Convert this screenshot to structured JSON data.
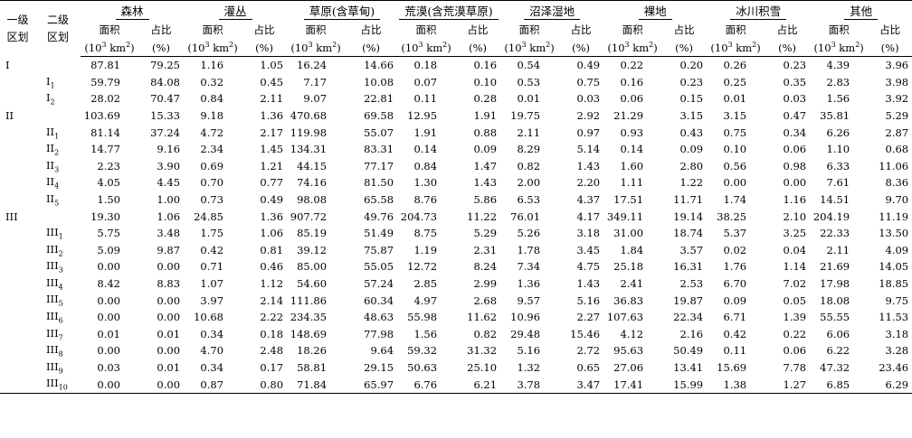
{
  "header": {
    "level1": "一级区划",
    "level2": "二级区划",
    "groups": [
      "森林",
      "灌丛",
      "草原(含草甸)",
      "荒漠(含荒漠草原)",
      "沼泽湿地",
      "裸地",
      "冰川积雪",
      "其他"
    ],
    "area_label": "面积",
    "area_unit_pre": "(10",
    "area_unit_exp": "3",
    "area_unit_post": " km",
    "area_unit_exp2": "2",
    "area_unit_close": ")",
    "ratio_label": "占比",
    "ratio_unit": "(%)"
  },
  "rows": [
    {
      "l1": "I",
      "l2": "",
      "l2sub": "",
      "v": [
        "87.81",
        "79.25",
        "1.16",
        "1.05",
        "16.24",
        "14.66",
        "0.18",
        "0.16",
        "0.54",
        "0.49",
        "0.22",
        "0.20",
        "0.26",
        "0.23",
        "4.39",
        "3.96"
      ]
    },
    {
      "l1": "",
      "l2": "I",
      "l2sub": "1",
      "v": [
        "59.79",
        "84.08",
        "0.32",
        "0.45",
        "7.17",
        "10.08",
        "0.07",
        "0.10",
        "0.53",
        "0.75",
        "0.16",
        "0.23",
        "0.25",
        "0.35",
        "2.83",
        "3.98"
      ]
    },
    {
      "l1": "",
      "l2": "I",
      "l2sub": "2",
      "v": [
        "28.02",
        "70.47",
        "0.84",
        "2.11",
        "9.07",
        "22.81",
        "0.11",
        "0.28",
        "0.01",
        "0.03",
        "0.06",
        "0.15",
        "0.01",
        "0.03",
        "1.56",
        "3.92"
      ]
    },
    {
      "l1": "II",
      "l2": "",
      "l2sub": "",
      "v": [
        "103.69",
        "15.33",
        "9.18",
        "1.36",
        "470.68",
        "69.58",
        "12.95",
        "1.91",
        "19.75",
        "2.92",
        "21.29",
        "3.15",
        "3.15",
        "0.47",
        "35.81",
        "5.29"
      ]
    },
    {
      "l1": "",
      "l2": "II",
      "l2sub": "1",
      "v": [
        "81.14",
        "37.24",
        "4.72",
        "2.17",
        "119.98",
        "55.07",
        "1.91",
        "0.88",
        "2.11",
        "0.97",
        "0.93",
        "0.43",
        "0.75",
        "0.34",
        "6.26",
        "2.87"
      ]
    },
    {
      "l1": "",
      "l2": "II",
      "l2sub": "2",
      "v": [
        "14.77",
        "9.16",
        "2.34",
        "1.45",
        "134.31",
        "83.31",
        "0.14",
        "0.09",
        "8.29",
        "5.14",
        "0.14",
        "0.09",
        "0.10",
        "0.06",
        "1.10",
        "0.68"
      ]
    },
    {
      "l1": "",
      "l2": "II",
      "l2sub": "3",
      "v": [
        "2.23",
        "3.90",
        "0.69",
        "1.21",
        "44.15",
        "77.17",
        "0.84",
        "1.47",
        "0.82",
        "1.43",
        "1.60",
        "2.80",
        "0.56",
        "0.98",
        "6.33",
        "11.06"
      ]
    },
    {
      "l1": "",
      "l2": "II",
      "l2sub": "4",
      "v": [
        "4.05",
        "4.45",
        "0.70",
        "0.77",
        "74.16",
        "81.50",
        "1.30",
        "1.43",
        "2.00",
        "2.20",
        "1.11",
        "1.22",
        "0.00",
        "0.00",
        "7.61",
        "8.36"
      ]
    },
    {
      "l1": "",
      "l2": "II",
      "l2sub": "5",
      "v": [
        "1.50",
        "1.00",
        "0.73",
        "0.49",
        "98.08",
        "65.58",
        "8.76",
        "5.86",
        "6.53",
        "4.37",
        "17.51",
        "11.71",
        "1.74",
        "1.16",
        "14.51",
        "9.70"
      ]
    },
    {
      "l1": "III",
      "l2": "",
      "l2sub": "",
      "v": [
        "19.30",
        "1.06",
        "24.85",
        "1.36",
        "907.72",
        "49.76",
        "204.73",
        "11.22",
        "76.01",
        "4.17",
        "349.11",
        "19.14",
        "38.25",
        "2.10",
        "204.19",
        "11.19"
      ]
    },
    {
      "l1": "",
      "l2": "III",
      "l2sub": "1",
      "v": [
        "5.75",
        "3.48",
        "1.75",
        "1.06",
        "85.19",
        "51.49",
        "8.75",
        "5.29",
        "5.26",
        "3.18",
        "31.00",
        "18.74",
        "5.37",
        "3.25",
        "22.33",
        "13.50"
      ]
    },
    {
      "l1": "",
      "l2": "III",
      "l2sub": "2",
      "v": [
        "5.09",
        "9.87",
        "0.42",
        "0.81",
        "39.12",
        "75.87",
        "1.19",
        "2.31",
        "1.78",
        "3.45",
        "1.84",
        "3.57",
        "0.02",
        "0.04",
        "2.11",
        "4.09"
      ]
    },
    {
      "l1": "",
      "l2": "III",
      "l2sub": "3",
      "v": [
        "0.00",
        "0.00",
        "0.71",
        "0.46",
        "85.00",
        "55.05",
        "12.72",
        "8.24",
        "7.34",
        "4.75",
        "25.18",
        "16.31",
        "1.76",
        "1.14",
        "21.69",
        "14.05"
      ]
    },
    {
      "l1": "",
      "l2": "III",
      "l2sub": "4",
      "v": [
        "8.42",
        "8.83",
        "1.07",
        "1.12",
        "54.60",
        "57.24",
        "2.85",
        "2.99",
        "1.36",
        "1.43",
        "2.41",
        "2.53",
        "6.70",
        "7.02",
        "17.98",
        "18.85"
      ]
    },
    {
      "l1": "",
      "l2": "III",
      "l2sub": "5",
      "v": [
        "0.00",
        "0.00",
        "3.97",
        "2.14",
        "111.86",
        "60.34",
        "4.97",
        "2.68",
        "9.57",
        "5.16",
        "36.83",
        "19.87",
        "0.09",
        "0.05",
        "18.08",
        "9.75"
      ]
    },
    {
      "l1": "",
      "l2": "III",
      "l2sub": "6",
      "v": [
        "0.00",
        "0.00",
        "10.68",
        "2.22",
        "234.35",
        "48.63",
        "55.98",
        "11.62",
        "10.96",
        "2.27",
        "107.63",
        "22.34",
        "6.71",
        "1.39",
        "55.55",
        "11.53"
      ]
    },
    {
      "l1": "",
      "l2": "III",
      "l2sub": "7",
      "v": [
        "0.01",
        "0.01",
        "0.34",
        "0.18",
        "148.69",
        "77.98",
        "1.56",
        "0.82",
        "29.48",
        "15.46",
        "4.12",
        "2.16",
        "0.42",
        "0.22",
        "6.06",
        "3.18"
      ]
    },
    {
      "l1": "",
      "l2": "III",
      "l2sub": "8",
      "v": [
        "0.00",
        "0.00",
        "4.70",
        "2.48",
        "18.26",
        "9.64",
        "59.32",
        "31.32",
        "5.16",
        "2.72",
        "95.63",
        "50.49",
        "0.11",
        "0.06",
        "6.22",
        "3.28"
      ]
    },
    {
      "l1": "",
      "l2": "III",
      "l2sub": "9",
      "v": [
        "0.03",
        "0.01",
        "0.34",
        "0.17",
        "58.81",
        "29.15",
        "50.63",
        "25.10",
        "1.32",
        "0.65",
        "27.06",
        "13.41",
        "15.69",
        "7.78",
        "47.32",
        "23.46"
      ]
    },
    {
      "l1": "",
      "l2": "III",
      "l2sub": "10",
      "v": [
        "0.00",
        "0.00",
        "0.87",
        "0.80",
        "71.84",
        "65.97",
        "6.76",
        "6.21",
        "3.78",
        "3.47",
        "17.41",
        "15.99",
        "1.38",
        "1.27",
        "6.85",
        "6.29"
      ]
    }
  ]
}
